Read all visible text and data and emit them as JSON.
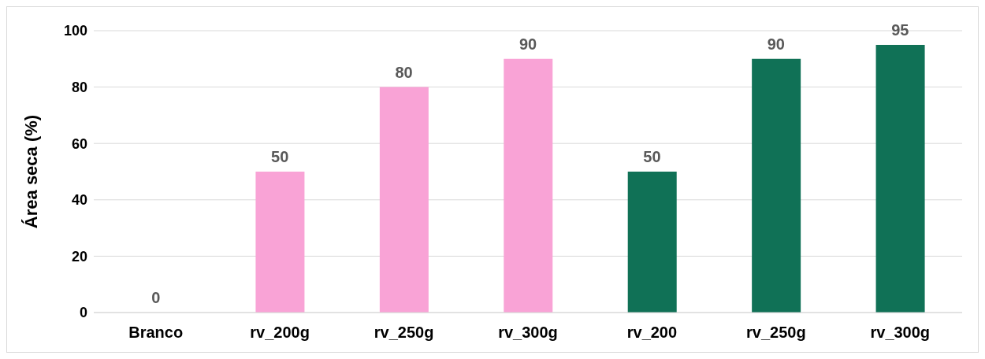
{
  "chart_data": {
    "type": "bar",
    "ylabel": "Área seca (%)",
    "categories": [
      "Branco",
      "rv_200g",
      "rv_250g",
      "rv_300g",
      "rv_200",
      "rv_250g",
      "rv_300g"
    ],
    "values": [
      0,
      50,
      80,
      90,
      50,
      90,
      95
    ],
    "colors": [
      "#f9a3d6",
      "#f9a3d6",
      "#f9a3d6",
      "#f9a3d6",
      "#107156",
      "#107156",
      "#107156"
    ],
    "ylim": [
      0,
      100
    ],
    "yticks": [
      0,
      20,
      40,
      60,
      80,
      100
    ],
    "grid": "y",
    "data_labels": true
  }
}
